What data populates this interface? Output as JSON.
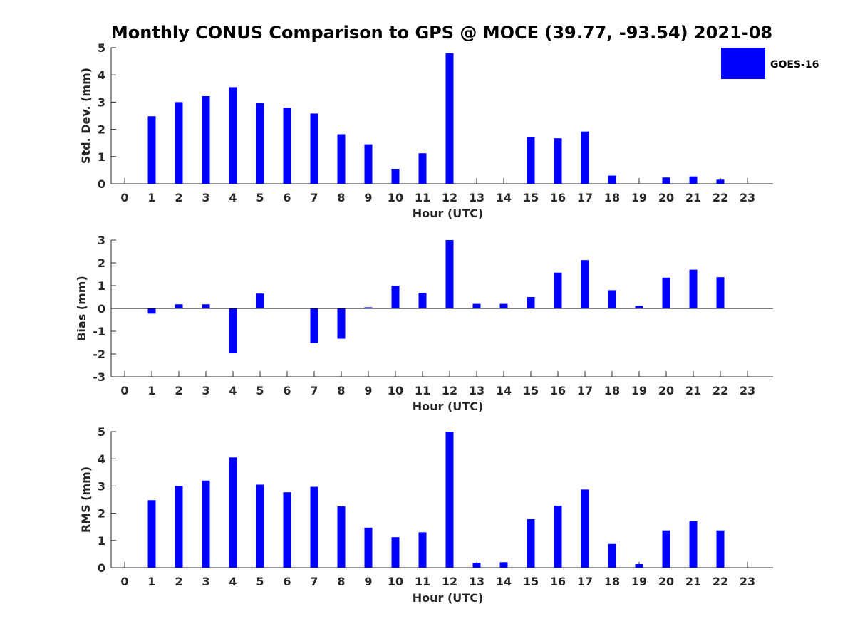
{
  "title": "Monthly CONUS Comparison to GPS @ MOCE (39.77, -93.54) 2021-08",
  "legend": {
    "label": "GOES-16",
    "placement": "top-right"
  },
  "colors": {
    "bar": "#0000ff",
    "axis": "#262626",
    "zero_line": "#000000"
  },
  "chart_data": [
    {
      "type": "bar",
      "categories": [
        "0",
        "1",
        "2",
        "3",
        "4",
        "5",
        "6",
        "7",
        "8",
        "9",
        "10",
        "11",
        "12",
        "13",
        "14",
        "15",
        "16",
        "17",
        "18",
        "19",
        "20",
        "21",
        "22",
        "23"
      ],
      "values": [
        null,
        2.48,
        3.0,
        3.22,
        3.55,
        2.97,
        2.8,
        2.58,
        1.82,
        1.45,
        0.55,
        1.12,
        4.8,
        null,
        null,
        1.72,
        1.67,
        1.92,
        0.3,
        null,
        0.23,
        0.27,
        0.15,
        null
      ],
      "xlabel": "Hour (UTC)",
      "ylabel": "Std. Dev. (mm)",
      "ylim": [
        0,
        5
      ],
      "yticks": [
        "0",
        "1",
        "2",
        "3",
        "4",
        "5"
      ],
      "series_name": "GOES-16"
    },
    {
      "type": "bar",
      "categories": [
        "0",
        "1",
        "2",
        "3",
        "4",
        "5",
        "6",
        "7",
        "8",
        "9",
        "10",
        "11",
        "12",
        "13",
        "14",
        "15",
        "16",
        "17",
        "18",
        "19",
        "20",
        "21",
        "22",
        "23"
      ],
      "values": [
        null,
        -0.23,
        0.18,
        0.18,
        -1.97,
        0.65,
        null,
        -1.52,
        -1.33,
        0.05,
        1.0,
        0.68,
        3.0,
        0.2,
        0.2,
        0.5,
        1.57,
        2.12,
        0.8,
        0.12,
        1.35,
        1.7,
        1.37,
        null
      ],
      "xlabel": "Hour (UTC)",
      "ylabel": "Bias (mm)",
      "ylim": [
        -3,
        3
      ],
      "yticks": [
        "-3",
        "-2",
        "-1",
        "0",
        "1",
        "2",
        "3"
      ],
      "series_name": "GOES-16"
    },
    {
      "type": "bar",
      "categories": [
        "0",
        "1",
        "2",
        "3",
        "4",
        "5",
        "6",
        "7",
        "8",
        "9",
        "10",
        "11",
        "12",
        "13",
        "14",
        "15",
        "16",
        "17",
        "18",
        "19",
        "20",
        "21",
        "22",
        "23"
      ],
      "values": [
        null,
        2.48,
        3.0,
        3.2,
        4.05,
        3.05,
        2.77,
        2.97,
        2.25,
        1.47,
        1.12,
        1.3,
        5.0,
        0.18,
        0.2,
        1.78,
        2.28,
        2.87,
        0.87,
        0.13,
        1.37,
        1.7,
        1.37,
        null
      ],
      "xlabel": "Hour (UTC)",
      "ylabel": "RMS (mm)",
      "ylim": [
        0,
        5
      ],
      "yticks": [
        "0",
        "1",
        "2",
        "3",
        "4",
        "5"
      ],
      "series_name": "GOES-16"
    }
  ]
}
